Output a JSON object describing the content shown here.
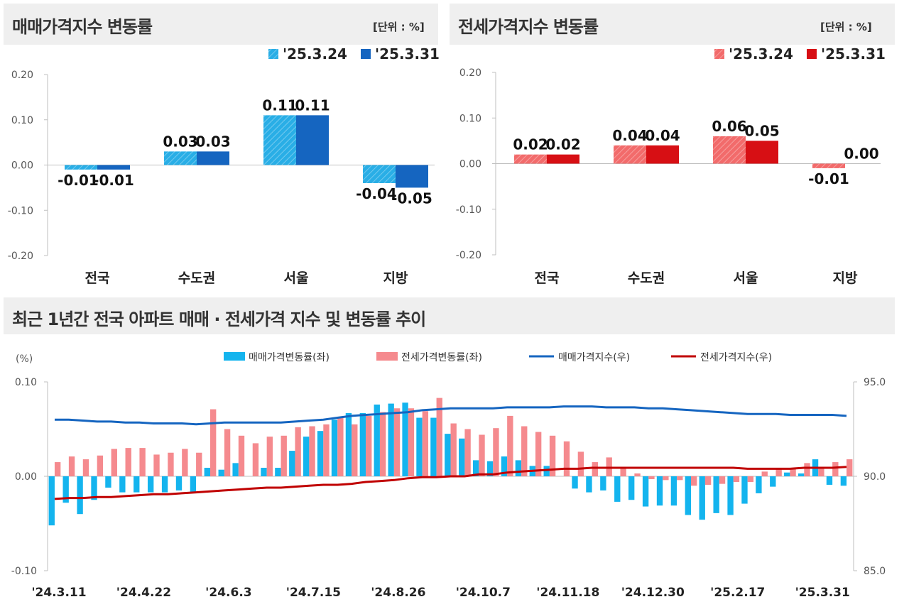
{
  "colors": {
    "sale_0324": "#29aee6",
    "sale_0331": "#1565c0",
    "jeonse_0324": "#f26b6b",
    "jeonse_0331": "#d70f14",
    "sale_bar": "#14b4ee",
    "jeonse_bar": "#f58a8e",
    "sale_line": "#1565c0",
    "jeonse_line": "#c00000",
    "header_bg": "#efefef"
  },
  "sale_panel": {
    "title": "매매가격지수 변동률",
    "unit": "[단위 : %]"
  },
  "jeonse_panel": {
    "title": "전세가격지수 변동률",
    "unit": "[단위 : %]"
  },
  "bottom_panel": {
    "title": "최근 1년간 전국 아파트 매매 · 전세가격 지수 및 변동률 추이"
  },
  "chart_data": [
    {
      "type": "bar",
      "categories": [
        "전국",
        "수도권",
        "서울",
        "지방"
      ],
      "series": [
        {
          "name": "'25.3.24",
          "values": [
            -0.01,
            0.03,
            0.11,
            -0.04
          ]
        },
        {
          "name": "'25.3.31",
          "values": [
            -0.01,
            0.03,
            0.11,
            -0.05
          ]
        }
      ],
      "data_labels": [
        [
          "-0.01",
          "0.03",
          "0.11",
          "-0.04"
        ],
        [
          "-0.01",
          "0.03",
          "0.11",
          "-0.05"
        ]
      ],
      "ylim": [
        -0.2,
        0.2
      ],
      "yticks": [
        "0.20",
        "0.10",
        "0.00",
        "-0.10",
        "-0.20"
      ],
      "legend": "top-right"
    },
    {
      "type": "bar",
      "categories": [
        "전국",
        "수도권",
        "서울",
        "지방"
      ],
      "series": [
        {
          "name": "'25.3.24",
          "values": [
            0.02,
            0.04,
            0.06,
            -0.01
          ]
        },
        {
          "name": "'25.3.31",
          "values": [
            0.02,
            0.04,
            0.05,
            0.0
          ]
        }
      ],
      "data_labels": [
        [
          "0.02",
          "0.04",
          "0.06",
          "-0.01"
        ],
        [
          "0.02",
          "0.04",
          "0.05",
          "0.00"
        ]
      ],
      "ylim": [
        -0.2,
        0.2
      ],
      "yticks": [
        "0.20",
        "0.10",
        "0.00",
        "-0.10",
        "-0.20"
      ],
      "legend": "top-right"
    },
    {
      "type": "bar",
      "left_axis_label": "(%)",
      "left_ylim": [
        -0.1,
        0.1
      ],
      "left_yticks": [
        "0.10",
        "0.00",
        "-0.10"
      ],
      "right_ylim": [
        85.0,
        95.0
      ],
      "right_yticks": [
        "95.0",
        "90.0",
        "85.0"
      ],
      "x_tick_labels": [
        "'24.3.11",
        "'24.4.22",
        "'24.6.3",
        "'24.7.15",
        "'24.8.26",
        "'24.10.7",
        "'24.11.18",
        "'24.12.30",
        "'25.2.17",
        "'25.3.31"
      ],
      "legend": "top",
      "series": [
        {
          "name": "매매가격변동률(좌)",
          "kind": "bar",
          "axis": "left",
          "values": [
            -0.052,
            -0.028,
            -0.04,
            -0.025,
            -0.012,
            -0.017,
            -0.017,
            -0.017,
            -0.017,
            -0.015,
            -0.017,
            0.009,
            0.007,
            0.014,
            0.0,
            0.009,
            0.009,
            0.027,
            0.042,
            0.048,
            0.06,
            0.067,
            0.067,
            0.076,
            0.077,
            0.078,
            0.062,
            0.062,
            0.045,
            0.04,
            0.017,
            0.016,
            0.021,
            0.017,
            0.011,
            0.011,
            0.0,
            -0.013,
            -0.017,
            -0.015,
            -0.027,
            -0.025,
            -0.032,
            -0.031,
            -0.031,
            -0.041,
            -0.046,
            -0.039,
            -0.041,
            -0.029,
            -0.018,
            -0.011,
            0.004,
            0.003,
            0.018,
            -0.009,
            -0.01
          ]
        },
        {
          "name": "전세가격변동률(좌)",
          "kind": "bar",
          "axis": "left",
          "values": [
            0.015,
            0.021,
            0.018,
            0.022,
            0.029,
            0.03,
            0.03,
            0.023,
            0.025,
            0.029,
            0.025,
            0.071,
            0.05,
            0.043,
            0.035,
            0.042,
            0.043,
            0.052,
            0.053,
            0.055,
            0.063,
            0.055,
            0.064,
            0.068,
            0.072,
            0.072,
            0.069,
            0.083,
            0.056,
            0.05,
            0.044,
            0.051,
            0.064,
            0.053,
            0.047,
            0.043,
            0.037,
            0.026,
            0.015,
            0.02,
            0.01,
            0.003,
            -0.003,
            -0.004,
            -0.004,
            -0.01,
            -0.009,
            -0.008,
            -0.006,
            -0.006,
            0.005,
            0.009,
            0.009,
            0.014,
            0.01,
            0.015,
            0.018
          ]
        },
        {
          "name": "매매가격지수(우)",
          "kind": "line",
          "axis": "right",
          "values": [
            93.0,
            93.0,
            92.95,
            92.9,
            92.9,
            92.85,
            92.85,
            92.8,
            92.8,
            92.8,
            92.75,
            92.8,
            92.85,
            92.85,
            92.85,
            92.85,
            92.85,
            92.9,
            92.95,
            93.0,
            93.1,
            93.2,
            93.25,
            93.3,
            93.35,
            93.4,
            93.5,
            93.55,
            93.6,
            93.6,
            93.6,
            93.6,
            93.65,
            93.65,
            93.65,
            93.65,
            93.7,
            93.7,
            93.7,
            93.65,
            93.65,
            93.65,
            93.6,
            93.6,
            93.55,
            93.5,
            93.45,
            93.4,
            93.35,
            93.3,
            93.3,
            93.3,
            93.25,
            93.25,
            93.25,
            93.25,
            93.2
          ]
        },
        {
          "name": "전세가격지수(우)",
          "kind": "line",
          "axis": "right",
          "values": [
            88.8,
            88.85,
            88.85,
            88.9,
            88.9,
            88.95,
            89.0,
            89.05,
            89.05,
            89.1,
            89.15,
            89.2,
            89.25,
            89.3,
            89.35,
            89.4,
            89.4,
            89.45,
            89.5,
            89.55,
            89.55,
            89.6,
            89.7,
            89.75,
            89.8,
            89.9,
            89.95,
            89.95,
            90.0,
            90.0,
            90.1,
            90.1,
            90.2,
            90.25,
            90.3,
            90.35,
            90.4,
            90.4,
            90.45,
            90.45,
            90.45,
            90.45,
            90.45,
            90.45,
            90.45,
            90.45,
            90.45,
            90.45,
            90.45,
            90.4,
            90.4,
            90.4,
            90.4,
            90.45,
            90.45,
            90.45,
            90.5
          ]
        }
      ]
    }
  ]
}
